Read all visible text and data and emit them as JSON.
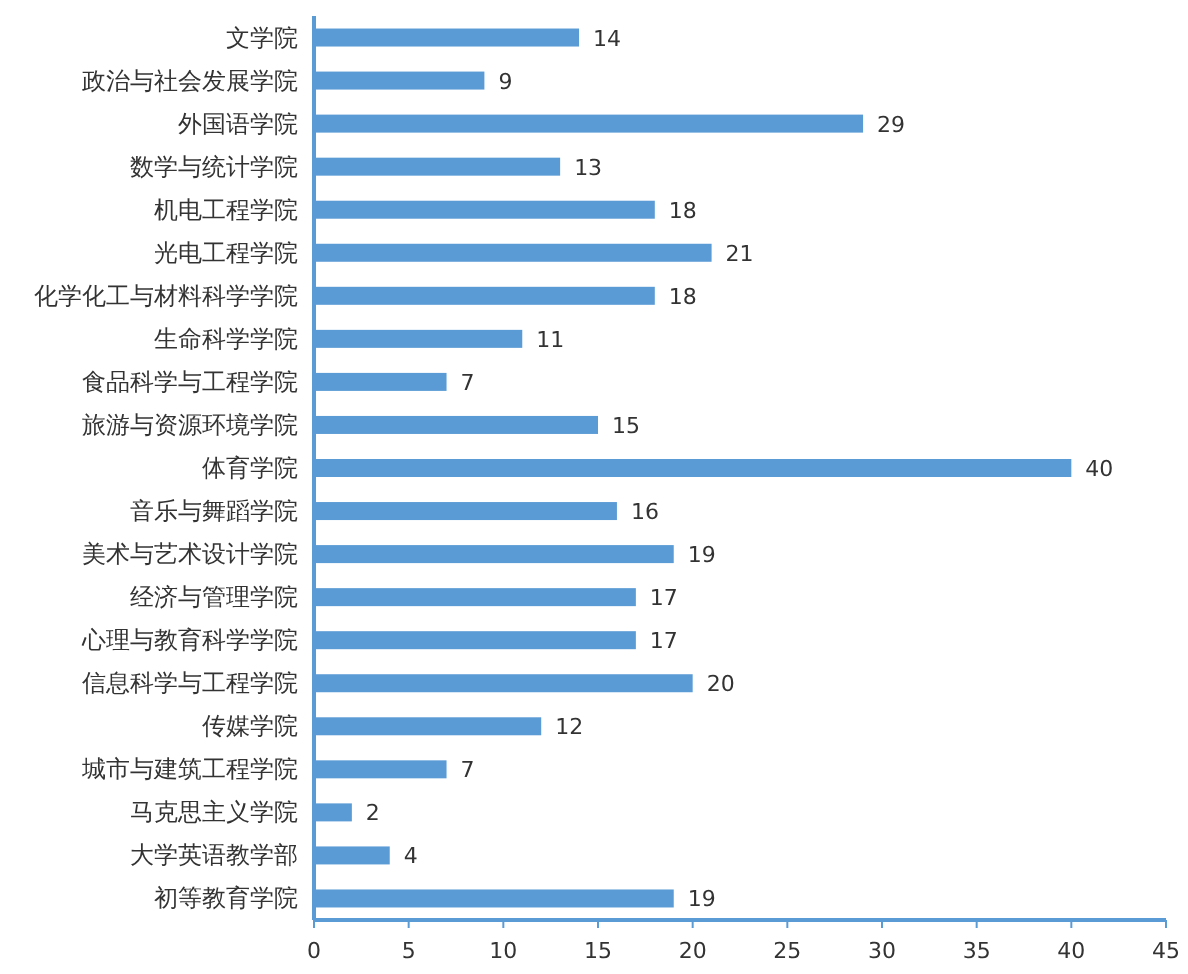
{
  "chart_data": {
    "type": "bar",
    "orientation": "horizontal",
    "categories": [
      "文学院",
      "政治与社会发展学院",
      "外国语学院",
      "数学与统计学院",
      "机电工程学院",
      "光电工程学院",
      "化学化工与材料科学学院",
      "生命科学学院",
      "食品科学与工程学院",
      "旅游与资源环境学院",
      "体育学院",
      "音乐与舞蹈学院",
      "美术与艺术设计学院",
      "经济与管理学院",
      "心理与教育科学学院",
      "信息科学与工程学院",
      "传媒学院",
      "城市与建筑工程学院",
      "马克思主义学院",
      "大学英语教学部",
      "初等教育学院"
    ],
    "values": [
      14,
      9,
      29,
      13,
      18,
      21,
      18,
      11,
      7,
      15,
      40,
      16,
      19,
      17,
      17,
      20,
      12,
      7,
      2,
      4,
      19
    ],
    "color": "#5b9bd5",
    "xlim": [
      0,
      45
    ],
    "xticks": [
      0,
      5,
      10,
      15,
      20,
      25,
      30,
      35,
      40,
      45
    ],
    "data_labels": true,
    "grid": false
  }
}
